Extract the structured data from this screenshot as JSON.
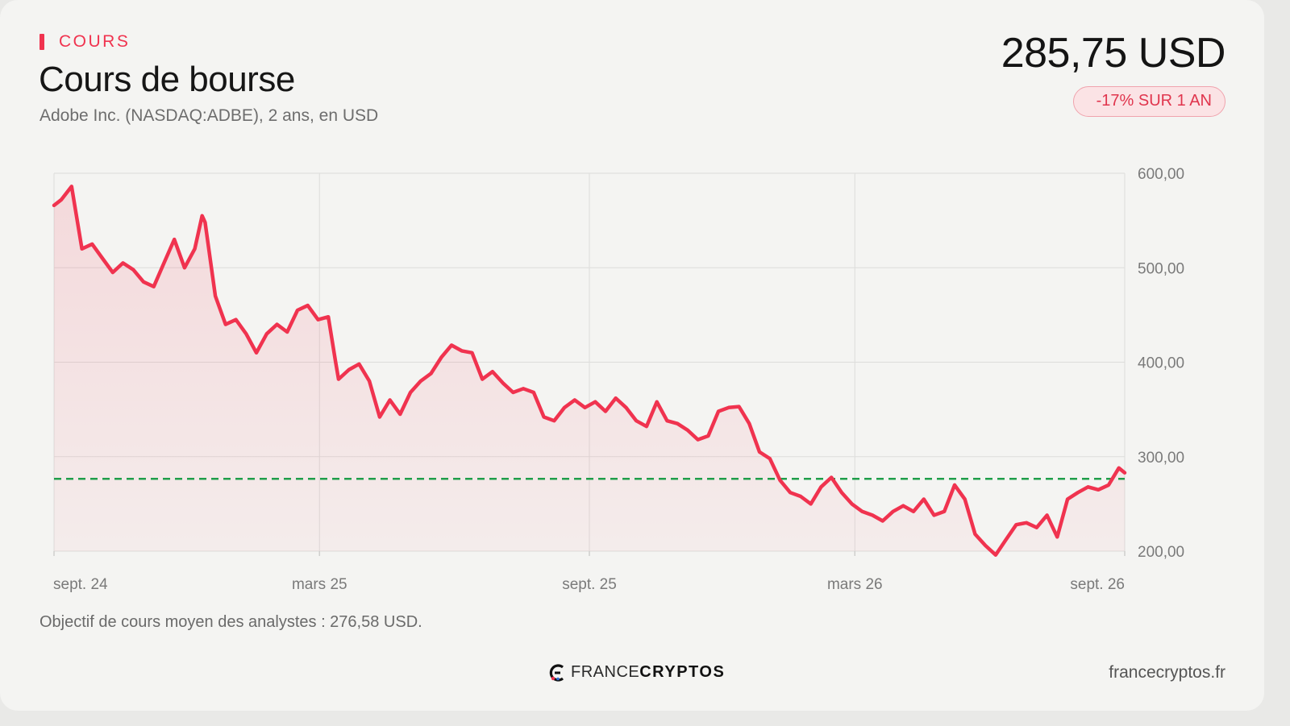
{
  "header": {
    "eyebrow": "COURS",
    "title": "Cours de bourse",
    "subtitle": "Adobe Inc. (NASDAQ:ADBE), 2 ans, en USD",
    "price": "285,75 USD",
    "change_badge": "-17% SUR 1 AN"
  },
  "footer": {
    "analyst_note": "Objectif de cours moyen des analystes : 276,58 USD.",
    "logo_light": "FRANCE",
    "logo_bold": "CRYPTOS",
    "site": "francecryptos.fr"
  },
  "colors": {
    "accent": "#f0334f",
    "target_line": "#1f9e4a",
    "grid": "#dddddb",
    "axis_text": "#7a7a7a"
  },
  "chart_data": {
    "type": "line",
    "title": "Cours de bourse",
    "xlabel": "",
    "ylabel": "",
    "ylim": [
      200,
      600
    ],
    "yticks": [
      200,
      300,
      400,
      500,
      600
    ],
    "ytick_labels": [
      "200,00",
      "300,00",
      "400,00",
      "500,00",
      "600,00"
    ],
    "xlim": [
      "2024-09-01",
      "2026-09-01"
    ],
    "xticks": [
      "2024-09-01",
      "2025-03-01",
      "2025-09-01",
      "2026-03-01",
      "2026-09-01"
    ],
    "xtick_labels": [
      "sept. 24",
      "mars 25",
      "sept. 25",
      "mars 26",
      "sept. 26"
    ],
    "grid": true,
    "fill_under": true,
    "reference_line": {
      "value": 276.58
    },
    "series": [
      {
        "x": [
          "2024-09-01",
          "2024-09-06",
          "2024-09-13",
          "2024-09-20",
          "2024-09-27",
          "2024-10-04",
          "2024-10-11",
          "2024-10-18",
          "2024-10-25",
          "2024-11-01",
          "2024-11-08",
          "2024-11-15",
          "2024-11-22",
          "2024-11-29",
          "2024-12-06",
          "2024-12-11",
          "2024-12-13",
          "2024-12-20",
          "2024-12-27",
          "2025-01-03",
          "2025-01-10",
          "2025-01-17",
          "2025-01-24",
          "2025-01-31",
          "2025-02-07",
          "2025-02-14",
          "2025-02-21",
          "2025-02-28",
          "2025-03-07",
          "2025-03-12",
          "2025-03-14",
          "2025-03-21",
          "2025-03-28",
          "2025-04-04",
          "2025-04-11",
          "2025-04-18",
          "2025-04-25",
          "2025-05-02",
          "2025-05-09",
          "2025-05-16",
          "2025-05-23",
          "2025-05-30",
          "2025-06-06",
          "2025-06-13",
          "2025-06-20",
          "2025-06-27",
          "2025-07-04",
          "2025-07-11",
          "2025-07-18",
          "2025-07-25",
          "2025-08-01",
          "2025-08-08",
          "2025-08-15",
          "2025-08-22",
          "2025-08-29",
          "2025-09-05",
          "2025-09-12",
          "2025-09-19",
          "2025-09-26",
          "2025-10-03",
          "2025-10-10",
          "2025-10-17",
          "2025-10-24",
          "2025-10-31",
          "2025-11-07",
          "2025-11-14",
          "2025-11-21",
          "2025-11-28",
          "2025-12-05",
          "2025-12-12",
          "2025-12-19",
          "2025-12-26",
          "2026-01-02",
          "2026-01-09",
          "2026-01-16",
          "2026-01-23",
          "2026-01-30",
          "2026-02-06",
          "2026-02-13",
          "2026-02-20",
          "2026-02-27",
          "2026-03-06",
          "2026-03-13",
          "2026-03-20",
          "2026-03-27",
          "2026-04-03",
          "2026-04-10",
          "2026-04-17",
          "2026-04-24",
          "2026-05-01",
          "2026-05-08",
          "2026-05-15",
          "2026-05-22",
          "2026-05-29",
          "2026-06-05",
          "2026-06-12",
          "2026-06-19",
          "2026-06-26",
          "2026-07-03",
          "2026-07-10",
          "2026-07-17",
          "2026-07-24",
          "2026-07-31",
          "2026-08-07",
          "2026-08-14",
          "2026-08-21",
          "2026-08-28",
          "2026-09-01"
        ],
        "values": [
          566,
          572,
          586,
          520,
          525,
          510,
          495,
          505,
          498,
          485,
          480,
          505,
          530,
          500,
          520,
          555,
          548,
          470,
          440,
          445,
          430,
          410,
          430,
          440,
          432,
          455,
          460,
          445,
          448,
          400,
          382,
          392,
          398,
          380,
          342,
          360,
          345,
          368,
          380,
          388,
          405,
          418,
          412,
          410,
          382,
          390,
          378,
          368,
          372,
          368,
          342,
          338,
          352,
          360,
          352,
          358,
          348,
          362,
          352,
          338,
          332,
          358,
          338,
          335,
          328,
          318,
          322,
          348,
          352,
          353,
          335,
          305,
          298,
          275,
          262,
          258,
          250,
          268,
          278,
          262,
          250,
          242,
          238,
          232,
          242,
          248,
          242,
          255,
          238,
          242,
          270,
          255,
          218,
          206,
          196,
          212,
          228,
          230,
          225,
          238,
          215,
          255,
          262,
          268,
          265,
          270,
          288,
          283
        ]
      }
    ]
  }
}
